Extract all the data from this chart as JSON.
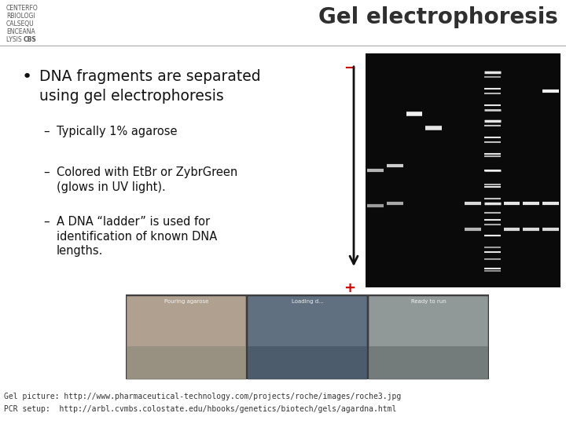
{
  "title": "Gel electrophoresis",
  "bg_color": "#ffffff",
  "title_color": "#2f2f2f",
  "title_fontsize": 20,
  "title_fontweight": "bold",
  "logo_lines": [
    "CENTERFO",
    "RBIOLOGI",
    "CALSEQU",
    "ENCEANA",
    "LYSIS CBS"
  ],
  "divider_color": "#aaaaaa",
  "divider_lw": 0.8,
  "bullet_main": "DNA fragments are separated\nusing gel electrophoresis",
  "sub_bullets": [
    "Typically 1% agarose",
    "Colored with EtBr or ZybrGreen\n(glows in UV light).",
    "A DNA “ladder” is used for\nidentification of known DNA\nlengths."
  ],
  "plus_minus_color": "#cc0000",
  "arrow_color": "#111111",
  "footer_line1": "Gel picture: http://www.pharmaceutical-technology.com/projects/roche/images/roche3.jpg",
  "footer_line2": "PCR setup:  http://arbl.cvmbs.colostate.edu/hbooks/genetics/biotech/gels/agardna.html",
  "footer_fontsize": 7.0,
  "main_bullet_fontsize": 13.5,
  "sub_bullet_fontsize": 10.5,
  "logo_fontsize": 5.5
}
